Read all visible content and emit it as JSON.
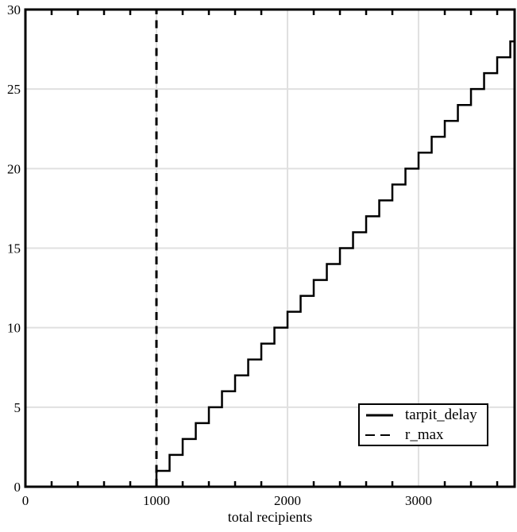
{
  "chart_data": {
    "type": "line",
    "title": "",
    "xlabel": "total recipients",
    "ylabel": "",
    "xlim": [
      0,
      3733
    ],
    "ylim": [
      0,
      30
    ],
    "x_major_ticks": [
      0,
      1000,
      2000,
      3000
    ],
    "x_tick_labels": [
      "0",
      "1000",
      "2000",
      "3000"
    ],
    "x_minor_tick_step": 200,
    "y_major_ticks": [
      0,
      5,
      10,
      15,
      20,
      25,
      30
    ],
    "y_tick_labels": [
      "0",
      "5",
      "10",
      "15",
      "20",
      "25",
      "30"
    ],
    "grid": true,
    "legend": {
      "position": "bottom-right",
      "entries": [
        "tarpit_delay",
        "r_max"
      ]
    },
    "series": [
      {
        "name": "tarpit_delay",
        "type": "step",
        "line_style": "solid",
        "color": "#000000",
        "points": [
          [
            0,
            0
          ],
          [
            1000,
            0
          ],
          [
            1000,
            1
          ],
          [
            1100,
            1
          ],
          [
            1100,
            2
          ],
          [
            1200,
            2
          ],
          [
            1200,
            3
          ],
          [
            1300,
            3
          ],
          [
            1300,
            4
          ],
          [
            1400,
            4
          ],
          [
            1400,
            5
          ],
          [
            1500,
            5
          ],
          [
            1500,
            6
          ],
          [
            1600,
            6
          ],
          [
            1600,
            7
          ],
          [
            1700,
            7
          ],
          [
            1700,
            8
          ],
          [
            1800,
            8
          ],
          [
            1800,
            9
          ],
          [
            1900,
            9
          ],
          [
            1900,
            10
          ],
          [
            2000,
            10
          ],
          [
            2000,
            11
          ],
          [
            2100,
            11
          ],
          [
            2100,
            12
          ],
          [
            2200,
            12
          ],
          [
            2200,
            13
          ],
          [
            2300,
            13
          ],
          [
            2300,
            14
          ],
          [
            2400,
            14
          ],
          [
            2400,
            15
          ],
          [
            2500,
            15
          ],
          [
            2500,
            16
          ],
          [
            2600,
            16
          ],
          [
            2600,
            17
          ],
          [
            2700,
            17
          ],
          [
            2700,
            18
          ],
          [
            2800,
            18
          ],
          [
            2800,
            19
          ],
          [
            2900,
            19
          ],
          [
            2900,
            20
          ],
          [
            3000,
            20
          ],
          [
            3000,
            21
          ],
          [
            3100,
            21
          ],
          [
            3100,
            22
          ],
          [
            3200,
            22
          ],
          [
            3200,
            23
          ],
          [
            3300,
            23
          ],
          [
            3300,
            24
          ],
          [
            3400,
            24
          ],
          [
            3400,
            25
          ],
          [
            3500,
            25
          ],
          [
            3500,
            26
          ],
          [
            3600,
            26
          ],
          [
            3600,
            27
          ],
          [
            3700,
            27
          ],
          [
            3700,
            28
          ],
          [
            3733,
            28
          ]
        ]
      },
      {
        "name": "r_max",
        "type": "vline",
        "line_style": "dashed",
        "color": "#000000",
        "x": 1000,
        "y_range": [
          0,
          30
        ]
      }
    ],
    "colors": {
      "axis": "#000000",
      "grid": "#e0e0e0",
      "background": "#ffffff"
    }
  }
}
